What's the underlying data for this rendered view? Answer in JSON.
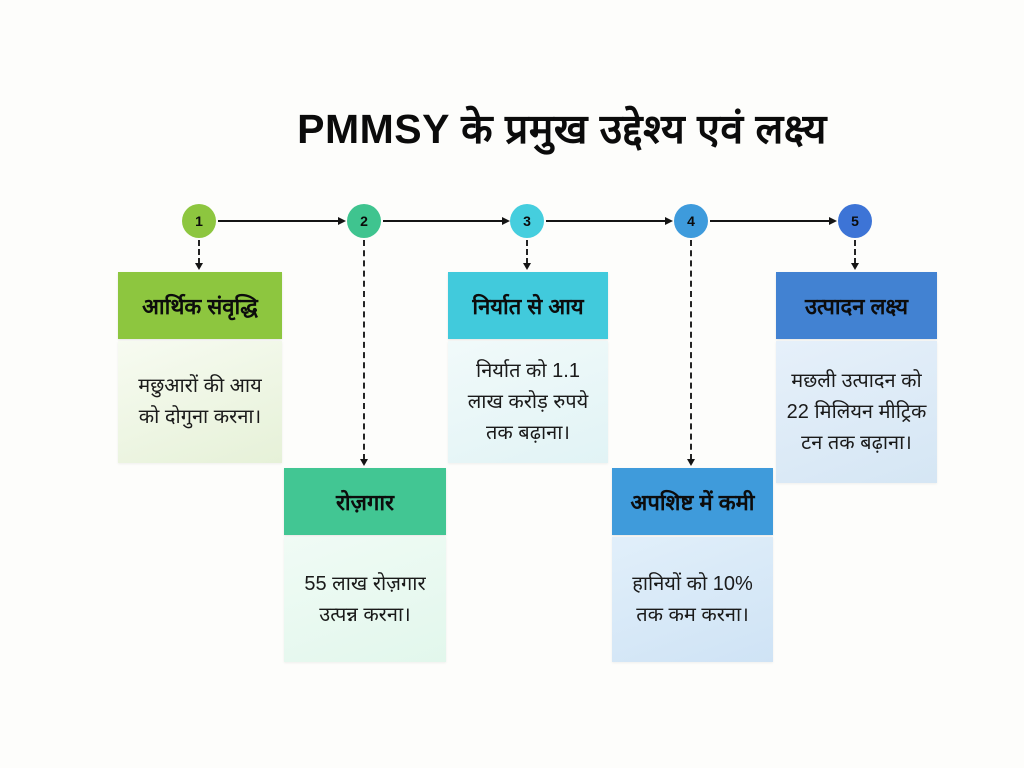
{
  "title": "PMMSY के प्रमुख उद्देश्य एवं लक्ष्य",
  "diagram_type": "numbered-timeline-infographic",
  "steps": [
    {
      "number": "1",
      "header": "आर्थिक संवृद्धि",
      "body": "मछुआरों की आय को दोगुना करना।",
      "circle_color": "#8dc63f",
      "header_color": "#8dc63f",
      "body_bg_start": "#f7fbf1",
      "body_bg_end": "#e6f1d8"
    },
    {
      "number": "2",
      "header": "रोज़गार",
      "body": "55 लाख रोज़गार उत्पन्न करना।",
      "circle_color": "#3fc48f",
      "header_color": "#42c693",
      "body_bg_start": "#f0fbf5",
      "body_bg_end": "#e2f7ec"
    },
    {
      "number": "3",
      "header": "निर्यात से आय",
      "body": "निर्यात को 1.1 लाख करोड़ रुपये तक बढ़ाना।",
      "circle_color": "#45cede",
      "header_color": "#41cadc",
      "body_bg_start": "#f1fafa",
      "body_bg_end": "#e1f3f5"
    },
    {
      "number": "4",
      "header": "अपशिष्ट में कमी",
      "body": "हानियों को 10% तक कम करना।",
      "circle_color": "#3e9bdc",
      "header_color": "#3f9bdb",
      "body_bg_start": "#e1effa",
      "body_bg_end": "#cfe3f5"
    },
    {
      "number": "5",
      "header": "उत्पादन लक्ष्य",
      "body": "मछली उत्पादन को 22 मिलियन मीट्रिक टन तक बढ़ाना।",
      "circle_color": "#3d74d6",
      "header_color": "#4282d2",
      "body_bg_start": "#e6f0fa",
      "body_bg_end": "#d5e6f4"
    }
  ],
  "connector_color": "#141414"
}
